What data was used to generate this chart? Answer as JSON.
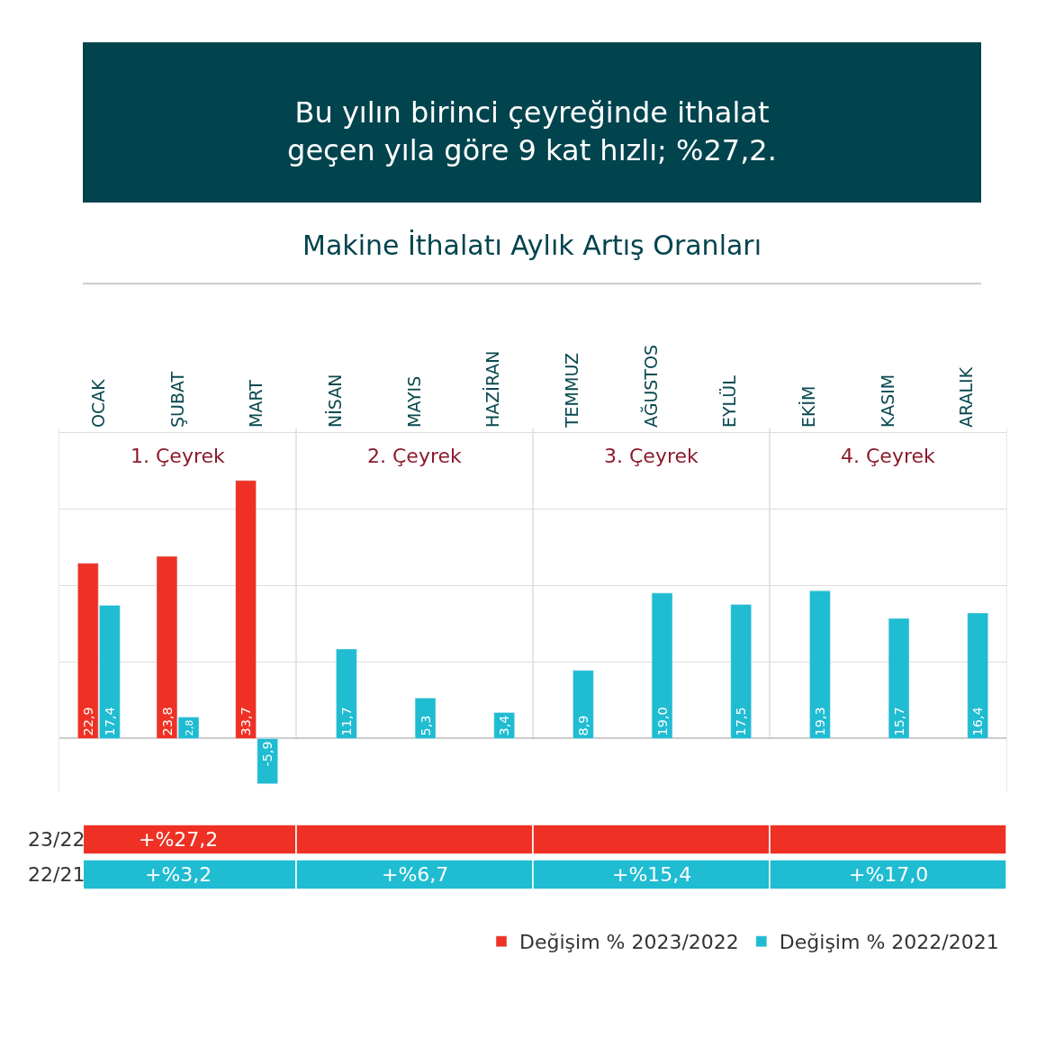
{
  "chart_data": {
    "type": "bar",
    "title": "Bu yılın birinci çeyreğinde ithalat\ngeçen yıla göre 9 kat hızlı; %27,2.",
    "subtitle": "Makine İthalatı Aylık Artış Oranları",
    "categories": [
      "OCAK",
      "ŞUBAT",
      "MART",
      "NİSAN",
      "MAYIS",
      "HAZİRAN",
      "TEMMUZ",
      "AĞUSTOS",
      "EYLÜL",
      "EKİM",
      "KASIM",
      "ARALIK"
    ],
    "series": [
      {
        "name": "Değişim % 2023/2022",
        "color": "#ee3124",
        "values": [
          22.9,
          23.8,
          33.7,
          null,
          null,
          null,
          null,
          null,
          null,
          null,
          null,
          null
        ],
        "value_labels": [
          "22,9",
          "23,8",
          "33,7",
          null,
          null,
          null,
          null,
          null,
          null,
          null,
          null,
          null
        ]
      },
      {
        "name": "Değişim % 2022/2021",
        "color": "#1fbcd2",
        "values": [
          17.4,
          2.8,
          -5.9,
          11.7,
          5.3,
          3.4,
          8.9,
          19.0,
          17.5,
          19.3,
          15.7,
          16.4
        ],
        "value_labels": [
          "17,4",
          "2,8",
          "-5,9",
          "11,7",
          "5,3",
          "3,4",
          "8,9",
          "19,0",
          "17,5",
          "19,3",
          "15,7",
          "16,4"
        ]
      }
    ],
    "ylim": [
      -7,
      40.5
    ],
    "yticks": [
      0,
      10,
      20,
      30,
      40
    ],
    "tick_labels": "x",
    "grid": "y",
    "legend": "bottom right",
    "annotations": [
      "23/22",
      "+%27,2",
      "22/21",
      "+%3,2",
      "+%6,7",
      "+%15,4",
      "+%17,0",
      "1. Çeyrek",
      "2. Çeyrek",
      "3. Çeyrek",
      "4. Çeyrek"
    ]
  }
}
